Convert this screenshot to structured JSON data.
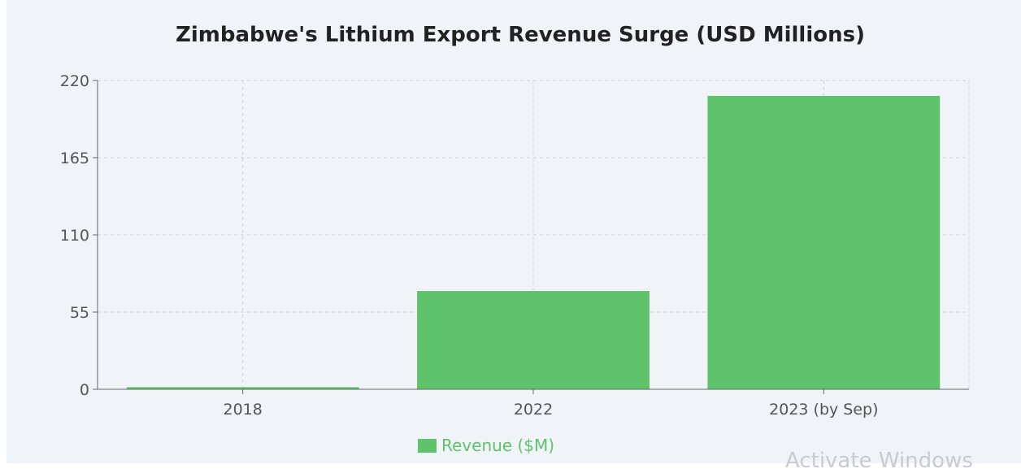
{
  "chart_data": {
    "type": "bar",
    "title": "Zimbabwe's Lithium Export Revenue Surge (USD Millions)",
    "categories": [
      "2018",
      "2022",
      "2023 (by Sep)"
    ],
    "series": [
      {
        "name": "Revenue ($M)",
        "values": [
          1.5,
          70,
          209
        ]
      }
    ],
    "ylim": [
      0,
      220
    ],
    "yticks": [
      0,
      55,
      110,
      165,
      220
    ],
    "grid": true,
    "legend_position": "bottom-center",
    "colors": {
      "bar": "#5fc36b",
      "grid": "#cfd3d8",
      "axis": "#666666",
      "legend_text": "#5fc36b"
    }
  },
  "watermark": "Activate Windows"
}
